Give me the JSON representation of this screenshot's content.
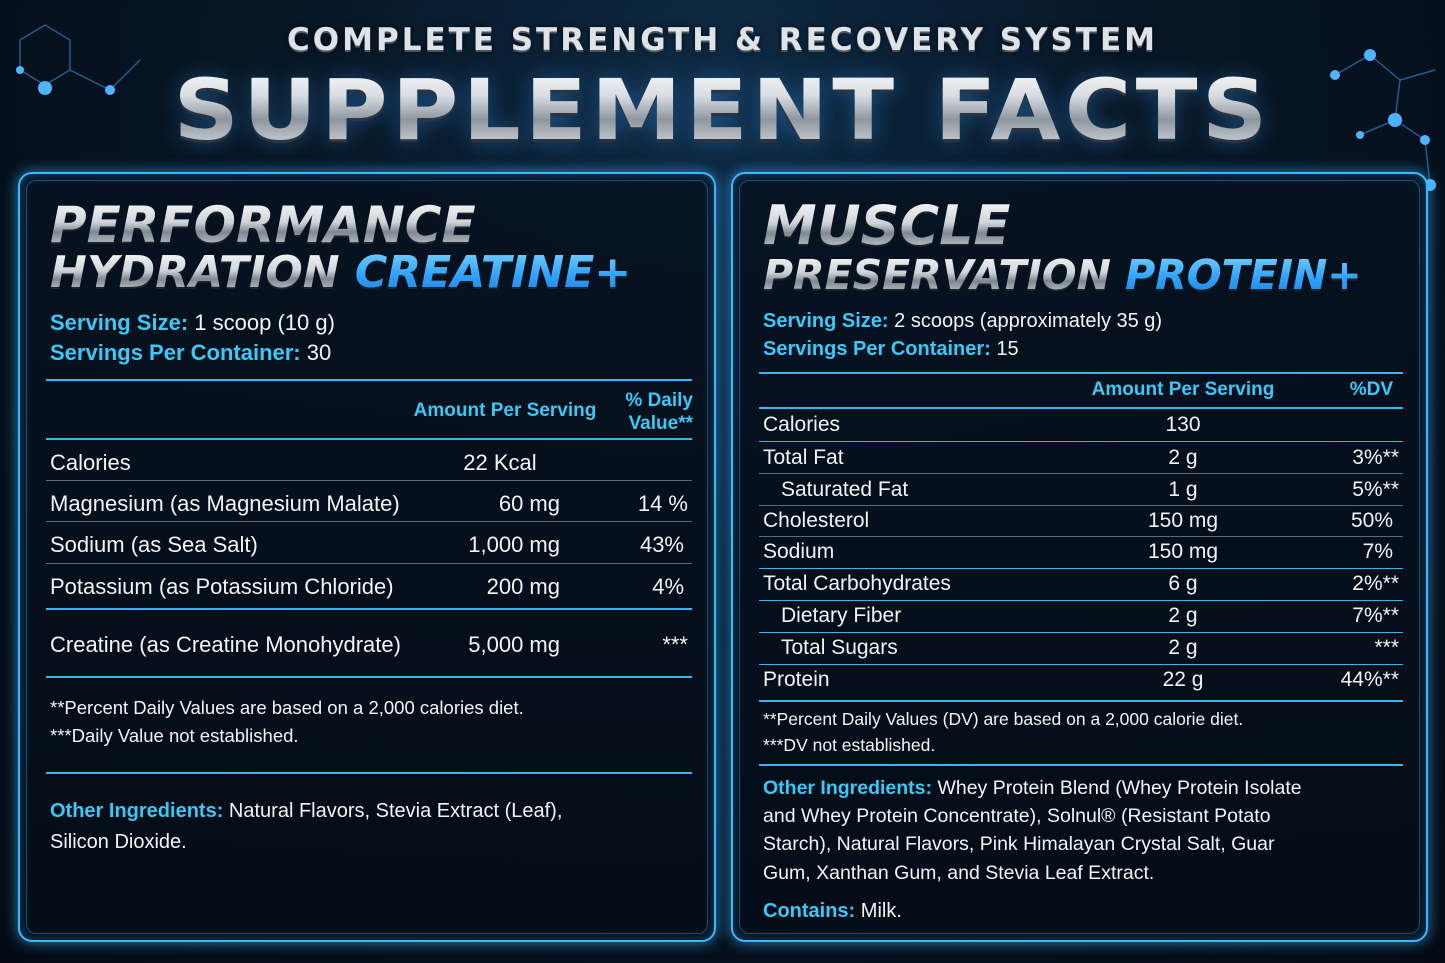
{
  "header": {
    "subtitle": "COMPLETE STRENGTH & RECOVERY SYSTEM",
    "title": "SUPPLEMENT FACTS"
  },
  "left": {
    "title_line1": "PERFORMANCE",
    "title_line2": "HYDRATION",
    "title_accent": "CREATINE+",
    "serving_size_label": "Serving Size:",
    "serving_size_value": "1 scoop (10 g)",
    "servings_label": "Servings Per Container:",
    "servings_value": "30",
    "col_amount": "Amount Per Serving",
    "col_dv_line1": "% Daily",
    "col_dv_line2": "Value**",
    "rows": [
      {
        "name": "Calories",
        "amount": "22 Kcal",
        "dv": ""
      },
      {
        "name": "Magnesium (as Magnesium Malate)",
        "amount": "60 mg",
        "dv": "14 %"
      },
      {
        "name": "Sodium (as Sea Salt)",
        "amount": "1,000 mg",
        "dv": "43%"
      },
      {
        "name": "Potassium (as Potassium Chloride)",
        "amount": "200 mg",
        "dv": "4%"
      },
      {
        "name": "Creatine (as Creatine Monohydrate)",
        "amount": "5,000 mg",
        "dv": "***"
      }
    ],
    "footnote1": "**Percent Daily Values are based on a 2,000 calories diet.",
    "footnote2": "***Daily Value not established.",
    "other_label": "Other Ingredients:",
    "other_line1": "Natural Flavors, Stevia Extract (Leaf),",
    "other_line2": "Silicon Dioxide."
  },
  "right": {
    "title_line1": "MUSCLE",
    "title_line2": "PRESERVATION",
    "title_accent": "PROTEIN+",
    "serving_size_label": "Serving Size:",
    "serving_size_value": "2 scoops (approximately 35 g)",
    "servings_label": "Servings Per Container:",
    "servings_value": "15",
    "col_amount": "Amount Per Serving",
    "col_dv": "%DV",
    "rows": [
      {
        "name": "Calories",
        "amount": "130",
        "dv": ""
      },
      {
        "name": "Total Fat",
        "amount": "2 g",
        "dv": "3%**"
      },
      {
        "name": "Saturated Fat",
        "amount": "1 g",
        "dv": "5%**"
      },
      {
        "name": "Cholesterol",
        "amount": "150 mg",
        "dv": "50%"
      },
      {
        "name": "Sodium",
        "amount": "150 mg",
        "dv": "7%"
      },
      {
        "name": "Total Carbohydrates",
        "amount": "6 g",
        "dv": "2%**"
      },
      {
        "name": "Dietary Fiber",
        "amount": "2 g",
        "dv": "7%**"
      },
      {
        "name": "Total Sugars",
        "amount": "2 g",
        "dv": "***"
      },
      {
        "name": "Protein",
        "amount": "22 g",
        "dv": "44%**"
      }
    ],
    "footnote1": "**Percent Daily Values (DV) are based on a 2,000 calorie diet.",
    "footnote2": "***DV not established.",
    "other_label": "Other Ingredients:",
    "other_line1": "Whey Protein Blend (Whey Protein Isolate",
    "other_line2": "and Whey Protein Concentrate), Solnul® (Resistant Potato",
    "other_line3": "Starch), Natural Flavors, Pink Himalayan Crystal Salt, Guar",
    "other_line4": "Gum, Xanthan Gum, and Stevia Leaf Extract.",
    "contains_label": "Contains:",
    "contains_value": "Milk."
  },
  "colors": {
    "accent": "#3cc8f5",
    "border": "#3fb7ff",
    "background": "#050d18"
  }
}
